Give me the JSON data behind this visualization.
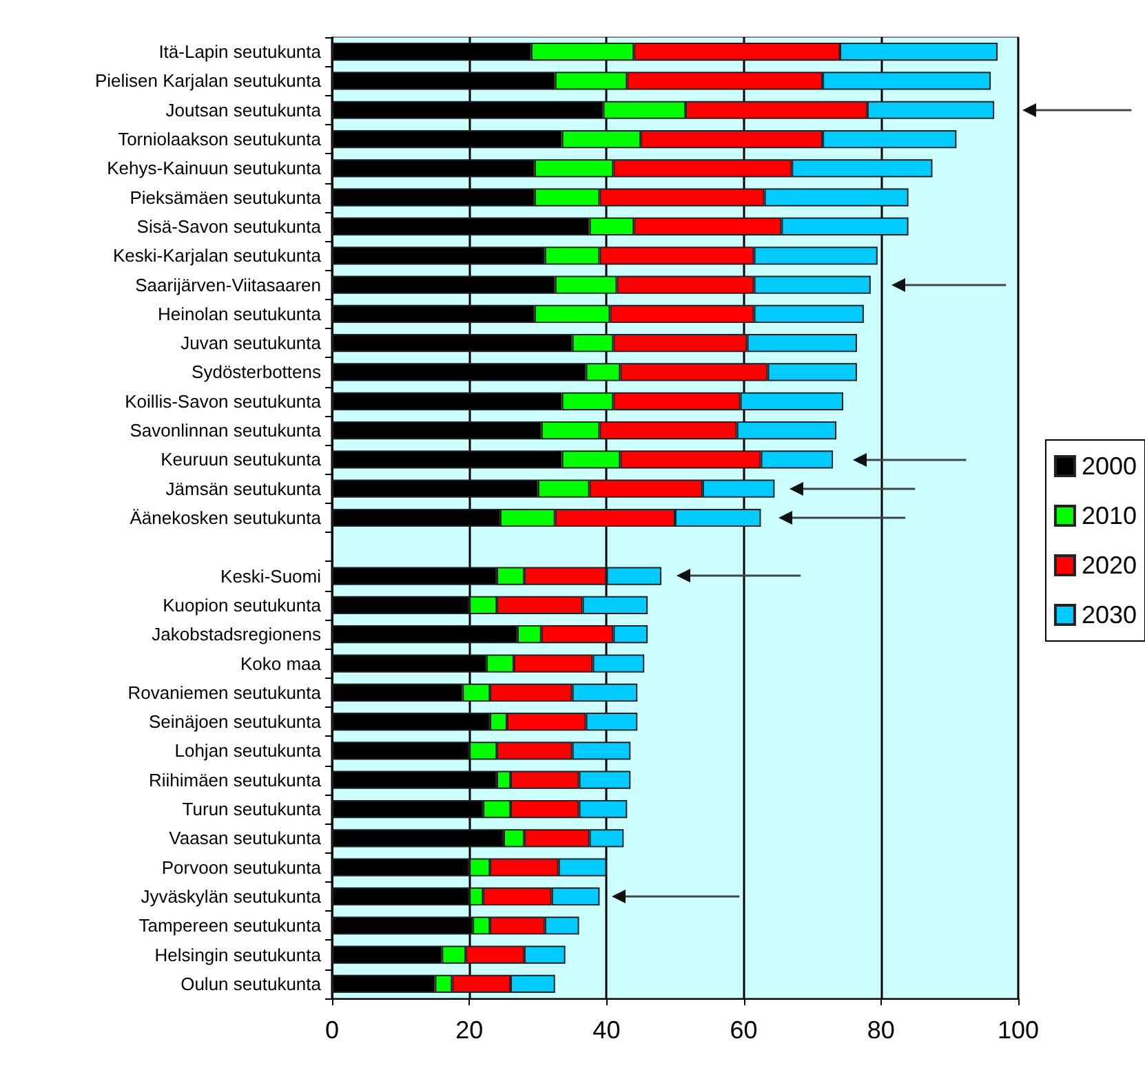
{
  "chart_data": {
    "type": "bar",
    "orientation": "horizontal",
    "stacked": true,
    "legend": "right",
    "grid": "x",
    "categories": [
      "Itä-Lapin seutukunta",
      "Pielisen Karjalan seutukunta",
      "Joutsan seutukunta",
      "Torniolaakson seutukunta",
      "Kehys-Kainuun seutukunta",
      "Pieksämäen seutukunta",
      "Sisä-Savon seutukunta",
      "Keski-Karjalan seutukunta",
      "Saarijärven-Viitasaaren",
      "Heinolan seutukunta",
      "Juvan seutukunta",
      "Sydösterbottens",
      "Koillis-Savon seutukunta",
      "Savonlinnan seutukunta",
      "Keuruun seutukunta",
      "Jämsän seutukunta",
      "Äänekosken seutukunta",
      null,
      "Keski-Suomi",
      "Kuopion seutukunta",
      "Jakobstadsregionens",
      "Koko maa",
      "Rovaniemen seutukunta",
      "Seinäjoen seutukunta",
      "Lohjan seutukunta",
      "Riihimäen seutukunta",
      "Turun seutukunta",
      "Vaasan seutukunta",
      "Porvoon seutukunta",
      "Jyväskylän seutukunta",
      "Tampereen seutukunta",
      "Helsingin seutukunta",
      "Oulun seutukunta"
    ],
    "series": [
      {
        "name": "2000",
        "color": "#000000",
        "values": [
          29,
          32.5,
          39.5,
          33.5,
          29.5,
          29.5,
          37.5,
          31,
          32.5,
          29.5,
          35,
          37,
          33.5,
          30.5,
          33.5,
          30,
          24.5,
          null,
          24,
          20,
          27,
          22.5,
          19,
          23,
          20,
          24,
          22,
          25,
          20,
          20,
          20.5,
          16,
          15
        ]
      },
      {
        "name": "2010",
        "color": "#00ff00",
        "values": [
          15,
          10.5,
          12,
          11.5,
          11.5,
          9.5,
          6.5,
          8,
          9,
          11,
          6,
          5,
          7.5,
          8.5,
          8.5,
          7.5,
          8,
          null,
          4,
          4,
          3.5,
          4,
          4,
          2.5,
          4,
          2,
          4,
          3,
          3,
          2,
          2.5,
          3.5,
          2.5
        ]
      },
      {
        "name": "2020",
        "color": "#ff0000",
        "values": [
          30,
          28.5,
          26.5,
          26.5,
          26,
          24,
          21.5,
          22.5,
          20,
          21,
          19.5,
          21.5,
          18.5,
          20,
          20.5,
          16.5,
          17.5,
          null,
          12,
          12.5,
          10.5,
          11.5,
          12,
          11.5,
          11,
          10,
          10,
          9.5,
          10,
          10,
          8,
          8.5,
          8.5
        ]
      },
      {
        "name": "2030",
        "color": "#00ccff",
        "values": [
          23,
          24.5,
          18.5,
          19.5,
          20.5,
          21,
          18.5,
          18,
          17,
          16,
          16,
          13,
          15,
          14.5,
          10.5,
          10.5,
          12.5,
          null,
          8,
          9.5,
          5,
          7.5,
          9.5,
          7.5,
          8.5,
          7.5,
          7,
          5,
          7,
          7,
          5,
          6,
          6.5
        ]
      }
    ],
    "xlim": [
      0,
      100
    ],
    "xticks": [
      0,
      20,
      40,
      60,
      80,
      100
    ]
  }
}
